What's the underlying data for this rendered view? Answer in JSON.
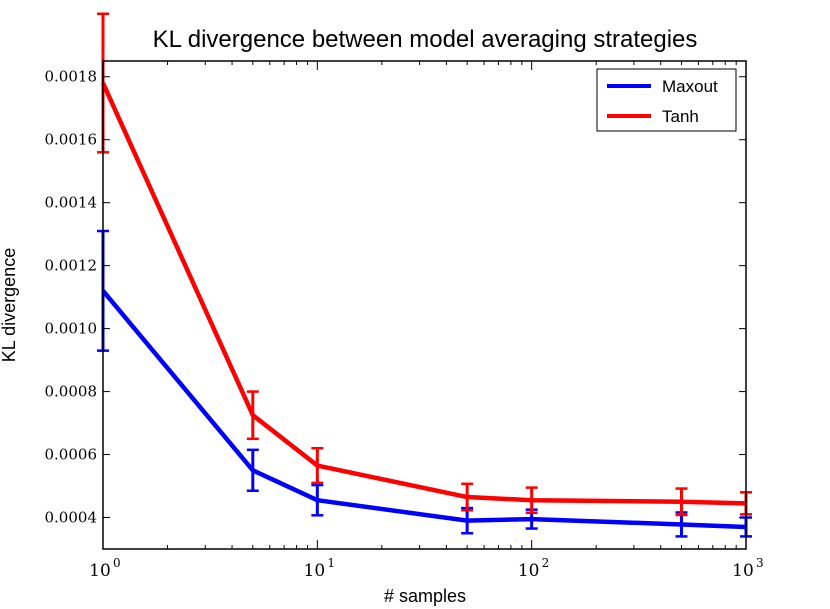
{
  "chart_data": {
    "type": "line",
    "title": "KL divergence between model averaging strategies",
    "xlabel": "# samples",
    "ylabel": "KL divergence",
    "xscale": "log",
    "xlim": [
      1,
      1000
    ],
    "ylim": [
      0.0003,
      0.00185
    ],
    "x_ticks": [
      {
        "value": 1,
        "base": "10",
        "exp": "0"
      },
      {
        "value": 10,
        "base": "10",
        "exp": "1"
      },
      {
        "value": 100,
        "base": "10",
        "exp": "2"
      },
      {
        "value": 1000,
        "base": "10",
        "exp": "3"
      }
    ],
    "y_ticks": [
      {
        "value": 0.0004,
        "label": "0.0004"
      },
      {
        "value": 0.0006,
        "label": "0.0006"
      },
      {
        "value": 0.0008,
        "label": "0.0008"
      },
      {
        "value": 0.001,
        "label": "0.0010"
      },
      {
        "value": 0.0012,
        "label": "0.0012"
      },
      {
        "value": 0.0014,
        "label": "0.0014"
      },
      {
        "value": 0.0016,
        "label": "0.0016"
      },
      {
        "value": 0.0018,
        "label": "0.0018"
      }
    ],
    "grid": false,
    "legend_position": "top-right",
    "x": [
      1,
      5,
      10,
      50,
      100,
      500,
      1000
    ],
    "series": [
      {
        "name": "Maxout",
        "color": "#0000ff",
        "values": [
          0.00112,
          0.00055,
          0.000455,
          0.00039,
          0.000395,
          0.000378,
          0.00037
        ],
        "errors": [
          0.00019,
          6.5e-05,
          4.8e-05,
          4e-05,
          3e-05,
          3.8e-05,
          3e-05
        ]
      },
      {
        "name": "Tanh",
        "color": "#ff0000",
        "values": [
          0.00178,
          0.000725,
          0.000565,
          0.000465,
          0.000455,
          0.00045,
          0.000445
        ],
        "errors": [
          0.00022,
          7.5e-05,
          5.5e-05,
          4.2e-05,
          4e-05,
          4.2e-05,
          3.5e-05
        ]
      }
    ]
  }
}
